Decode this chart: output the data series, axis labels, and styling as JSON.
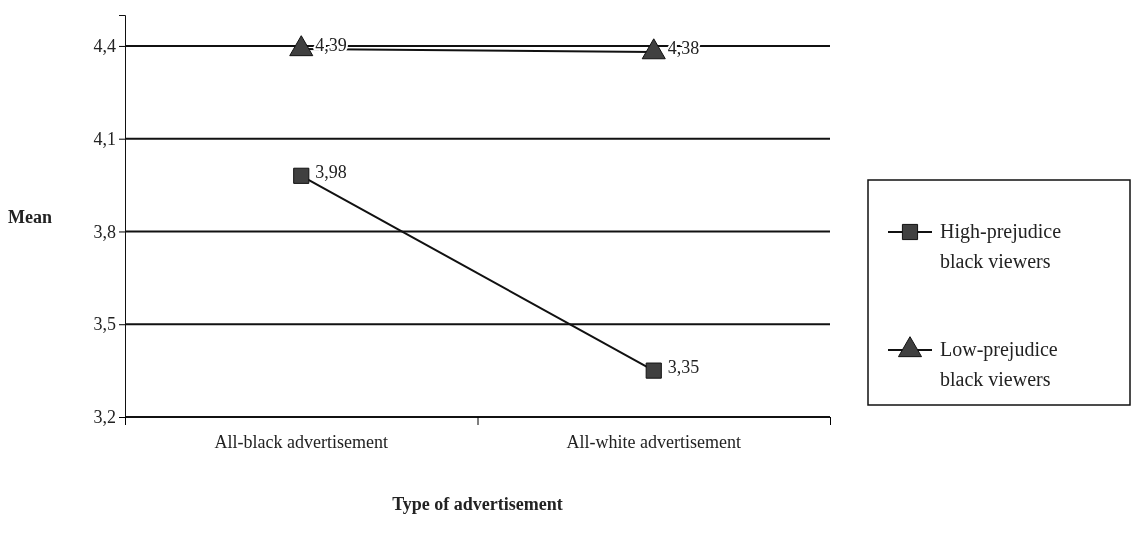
{
  "chart_data": {
    "type": "line",
    "xlabel": "Type of advertisement",
    "ylabel": "Mean",
    "categories": [
      "All-black advertisement",
      "All-white advertisement"
    ],
    "series": [
      {
        "name": "High-prejudice black viewers",
        "color": "#404040",
        "marker": "square",
        "values": [
          3.98,
          3.35
        ],
        "value_labels": [
          "3,98",
          "3,35"
        ]
      },
      {
        "name": "Low-prejudice black viewers",
        "color": "#404040",
        "marker": "triangle",
        "values": [
          4.39,
          4.38
        ],
        "value_labels": [
          "4,39",
          "4,38"
        ]
      }
    ],
    "ylim": [
      3.2,
      4.5
    ],
    "yticks": [
      {
        "value": 3.2,
        "label": "3,2"
      },
      {
        "value": 3.5,
        "label": "3,5"
      },
      {
        "value": 3.8,
        "label": "3,8"
      },
      {
        "value": 4.1,
        "label": "4,1"
      },
      {
        "value": 4.4,
        "label": "4,4"
      }
    ],
    "grid": "y",
    "legend": "right",
    "line_style": "solid"
  }
}
